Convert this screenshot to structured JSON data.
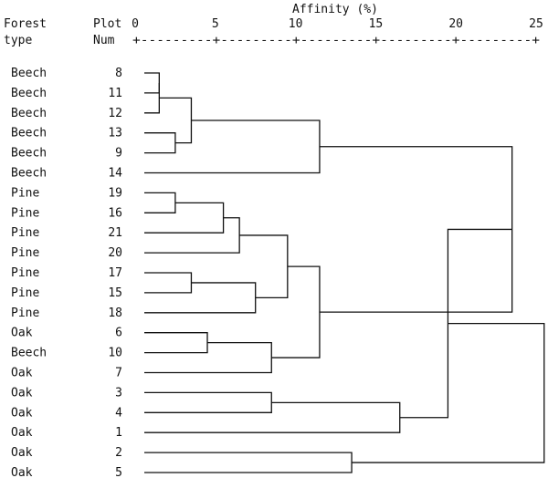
{
  "header": {
    "col1_line1": "Forest",
    "col1_line2": "type",
    "col2_line1": "Plot",
    "col2_line2": "Num",
    "axis_title": "Affinity (%)",
    "axis_ruler": "+---------+---------+---------+---------+---------+"
  },
  "axis": {
    "min": 0,
    "max": 25,
    "ticks": [
      {
        "value": 0,
        "label": "0"
      },
      {
        "value": 5,
        "label": "5"
      },
      {
        "value": 10,
        "label": "10"
      },
      {
        "value": 15,
        "label": "15"
      },
      {
        "value": 20,
        "label": "20"
      },
      {
        "value": 25,
        "label": "25"
      }
    ]
  },
  "rows": [
    {
      "type": "Beech",
      "plot": "8"
    },
    {
      "type": "Beech",
      "plot": "11"
    },
    {
      "type": "Beech",
      "plot": "12"
    },
    {
      "type": "Beech",
      "plot": "13"
    },
    {
      "type": "Beech",
      "plot": "9"
    },
    {
      "type": "Beech",
      "plot": "14"
    },
    {
      "type": "Pine",
      "plot": "19"
    },
    {
      "type": "Pine",
      "plot": "16"
    },
    {
      "type": "Pine",
      "plot": "21"
    },
    {
      "type": "Pine",
      "plot": "20"
    },
    {
      "type": "Pine",
      "plot": "17"
    },
    {
      "type": "Pine",
      "plot": "15"
    },
    {
      "type": "Pine",
      "plot": "18"
    },
    {
      "type": "Oak",
      "plot": "6"
    },
    {
      "type": "Beech",
      "plot": "10"
    },
    {
      "type": "Oak",
      "plot": "7"
    },
    {
      "type": "Oak",
      "plot": "3"
    },
    {
      "type": "Oak",
      "plot": "4"
    },
    {
      "type": "Oak",
      "plot": "1"
    },
    {
      "type": "Oak",
      "plot": "2"
    },
    {
      "type": "Oak",
      "plot": "5"
    }
  ],
  "merges": [
    {
      "id": "m1",
      "left": "8",
      "right": "11",
      "height": 1.5
    },
    {
      "id": "m2",
      "left": "m1",
      "right": "12",
      "height": 1.5
    },
    {
      "id": "m3",
      "left": "13",
      "right": "9",
      "height": 2.5
    },
    {
      "id": "m4",
      "left": "m2",
      "right": "m3",
      "height": 3.5
    },
    {
      "id": "m5",
      "left": "m4",
      "right": "14",
      "height": 11.5
    },
    {
      "id": "m6",
      "left": "19",
      "right": "16",
      "height": 2.5
    },
    {
      "id": "m7",
      "left": "m6",
      "right": "21",
      "height": 5.5
    },
    {
      "id": "m8",
      "left": "m7",
      "right": "20",
      "height": 6.5
    },
    {
      "id": "m9",
      "left": "17",
      "right": "15",
      "height": 3.5
    },
    {
      "id": "m10",
      "left": "m9",
      "right": "18",
      "height": 7.5
    },
    {
      "id": "m11",
      "left": "m8",
      "right": "m10",
      "height": 9.5
    },
    {
      "id": "m12",
      "left": "6",
      "right": "10",
      "height": 4.5
    },
    {
      "id": "m13",
      "left": "m12",
      "right": "7",
      "height": 8.5
    },
    {
      "id": "m14",
      "left": "m11",
      "right": "m13",
      "height": 11.5
    },
    {
      "id": "m15",
      "left": "m5",
      "right": "m14",
      "height": 23.5
    },
    {
      "id": "m16",
      "left": "3",
      "right": "4",
      "height": 8.5
    },
    {
      "id": "m17",
      "left": "m16",
      "right": "1",
      "height": 16.5
    },
    {
      "id": "m18",
      "left": "m15",
      "right": "m17",
      "height": 19.5
    },
    {
      "id": "m19",
      "left": "2",
      "right": "5",
      "height": 13.5
    },
    {
      "id": "m20",
      "left": "m18",
      "right": "m19",
      "height": 25.5
    }
  ],
  "colors": {
    "line": "#111111",
    "text": "#111111",
    "background": "#ffffff"
  }
}
